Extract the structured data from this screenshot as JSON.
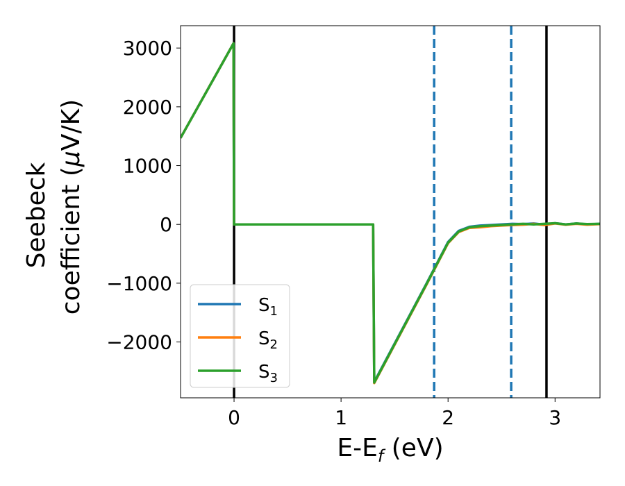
{
  "chart_data": {
    "type": "line",
    "title": "",
    "xlabel": {
      "main": "E-E",
      "sub": "f",
      "unit": " (eV)"
    },
    "ylabel": {
      "line1": "Seebeck",
      "line2_pre": "coefficient  (",
      "mu": "μ",
      "line2_post": "V/K)"
    },
    "xlim": [
      -0.5,
      3.42
    ],
    "ylim": [
      -2950,
      3380
    ],
    "xticks": [
      0,
      1,
      2,
      3
    ],
    "xtick_labels": [
      "0",
      "1",
      "2",
      "3"
    ],
    "yticks": [
      -2000,
      -1000,
      0,
      1000,
      2000,
      3000
    ],
    "ytick_labels": [
      "−2000",
      "−1000",
      "0",
      "1000",
      "2000",
      "3000"
    ],
    "grid": false,
    "legend_placement": "lower-left",
    "vlines": [
      {
        "x": 0.0,
        "style": "solid",
        "color": "#000000"
      },
      {
        "x": 2.92,
        "style": "solid",
        "color": "#000000"
      },
      {
        "x": 1.87,
        "style": "dashed",
        "color": "#1f77b4"
      },
      {
        "x": 2.59,
        "style": "dashed",
        "color": "#1f77b4"
      }
    ],
    "series": [
      {
        "name": "S",
        "sub": "1",
        "color": "#1f77b4",
        "x": [
          -0.5,
          -0.005,
          0.0,
          1.3,
          1.31,
          1.8,
          2.0,
          2.1,
          2.2,
          2.3,
          2.4,
          2.5,
          2.6,
          2.7,
          2.8,
          2.9,
          3.0,
          3.1,
          3.2,
          3.3,
          3.42
        ],
        "y": [
          1470,
          3080,
          0,
          0,
          -2680,
          -1000,
          -300,
          -110,
          -40,
          -20,
          -10,
          0,
          10,
          5,
          15,
          -5,
          20,
          0,
          15,
          0,
          10
        ]
      },
      {
        "name": "S",
        "sub": "2",
        "color": "#ff7f0e",
        "x": [
          -0.5,
          -0.005,
          0.0,
          1.3,
          1.31,
          1.8,
          2.0,
          2.1,
          2.2,
          2.3,
          2.4,
          2.5,
          2.6,
          2.7,
          2.8,
          2.9,
          3.0,
          3.1,
          3.2,
          3.3,
          3.42
        ],
        "y": [
          1470,
          3080,
          0,
          0,
          -2700,
          -1020,
          -320,
          -130,
          -60,
          -50,
          -30,
          -20,
          -10,
          -5,
          10,
          -10,
          15,
          -5,
          10,
          -5,
          5
        ]
      },
      {
        "name": "S",
        "sub": "3",
        "color": "#2ca02c",
        "x": [
          -0.5,
          -0.005,
          0.0,
          1.3,
          1.31,
          1.8,
          2.0,
          2.1,
          2.2,
          2.3,
          2.4,
          2.5,
          2.6,
          2.7,
          2.8,
          2.9,
          3.0,
          3.1,
          3.2,
          3.3,
          3.42
        ],
        "y": [
          1470,
          3080,
          0,
          0,
          -2690,
          -1010,
          -310,
          -120,
          -50,
          -30,
          -20,
          -10,
          0,
          10,
          0,
          10,
          20,
          0,
          15,
          5,
          10
        ]
      }
    ]
  }
}
